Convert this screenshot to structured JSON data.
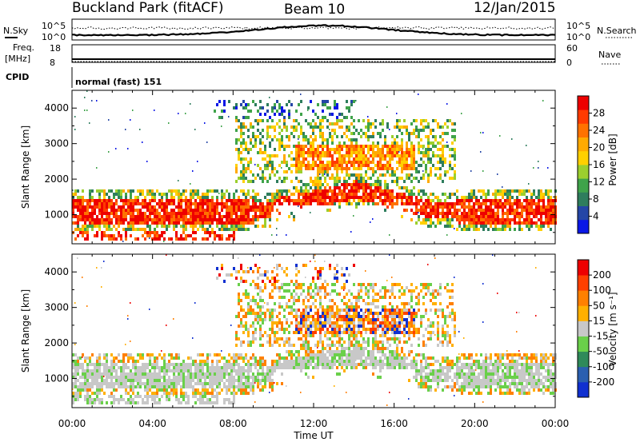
{
  "header": {
    "station": "Buckland Park (fitACF)",
    "beam": "Beam 10",
    "date": "12/Jan/2015"
  },
  "top_panels": {
    "nsky_label": "N.Sky",
    "nsky_scale_top": "10^5",
    "nsky_scale_bottom": "10^0",
    "nsearch_label": "N.Search",
    "nsearch_scale_top": "10^5",
    "nsearch_scale_bottom": "10^0",
    "freq_label_1": "Freq.",
    "freq_label_2": "[MHz]",
    "freq_top": "18",
    "freq_bottom": "8",
    "nave_label": "Nave",
    "nave_top": "60",
    "nave_bottom": "0",
    "cpid_label": "CPID",
    "cpid_value": "normal (fast) 151"
  },
  "chart_data": [
    {
      "type": "heatmap",
      "name": "power",
      "ylabel": "Slant Range [km]",
      "xlabel": "",
      "x_ticks": [
        "00:00",
        "04:00",
        "08:00",
        "12:00",
        "16:00",
        "20:00",
        "00:00"
      ],
      "x_range_hours": [
        0,
        24
      ],
      "y_ticks": [
        1000,
        2000,
        3000,
        4000
      ],
      "ylim": [
        180,
        4500
      ],
      "colorbar": {
        "label": "Power [dB]",
        "ticks": [
          "4",
          "8",
          "12",
          "16",
          "20",
          "24",
          "28"
        ],
        "colors": [
          "#0a17e6",
          "#2446a6",
          "#2e7d5d",
          "#3fa34a",
          "#9ccf2e",
          "#ffd000",
          "#ffaa00",
          "#ff7200",
          "#ff3b00",
          "#ee0000"
        ]
      }
    },
    {
      "type": "heatmap",
      "name": "velocity",
      "ylabel": "Slant Range [km]",
      "xlabel": "Time UT",
      "x_ticks": [
        "00:00",
        "04:00",
        "08:00",
        "12:00",
        "16:00",
        "20:00",
        "00:00"
      ],
      "x_range_hours": [
        0,
        24
      ],
      "y_ticks": [
        1000,
        2000,
        3000,
        4000
      ],
      "ylim": [
        180,
        4500
      ],
      "colorbar": {
        "label": "Velocity [m s⁻¹]",
        "ticks": [
          "200",
          "100",
          "50",
          "15",
          "-15",
          "-50",
          "-100",
          "-200"
        ],
        "colors": [
          "#1030d0",
          "#2a5fb0",
          "#2f8a5a",
          "#6ad04a",
          "#c8c8c8",
          "#ffb000",
          "#ff8000",
          "#ff4000",
          "#ee0000"
        ]
      }
    }
  ]
}
